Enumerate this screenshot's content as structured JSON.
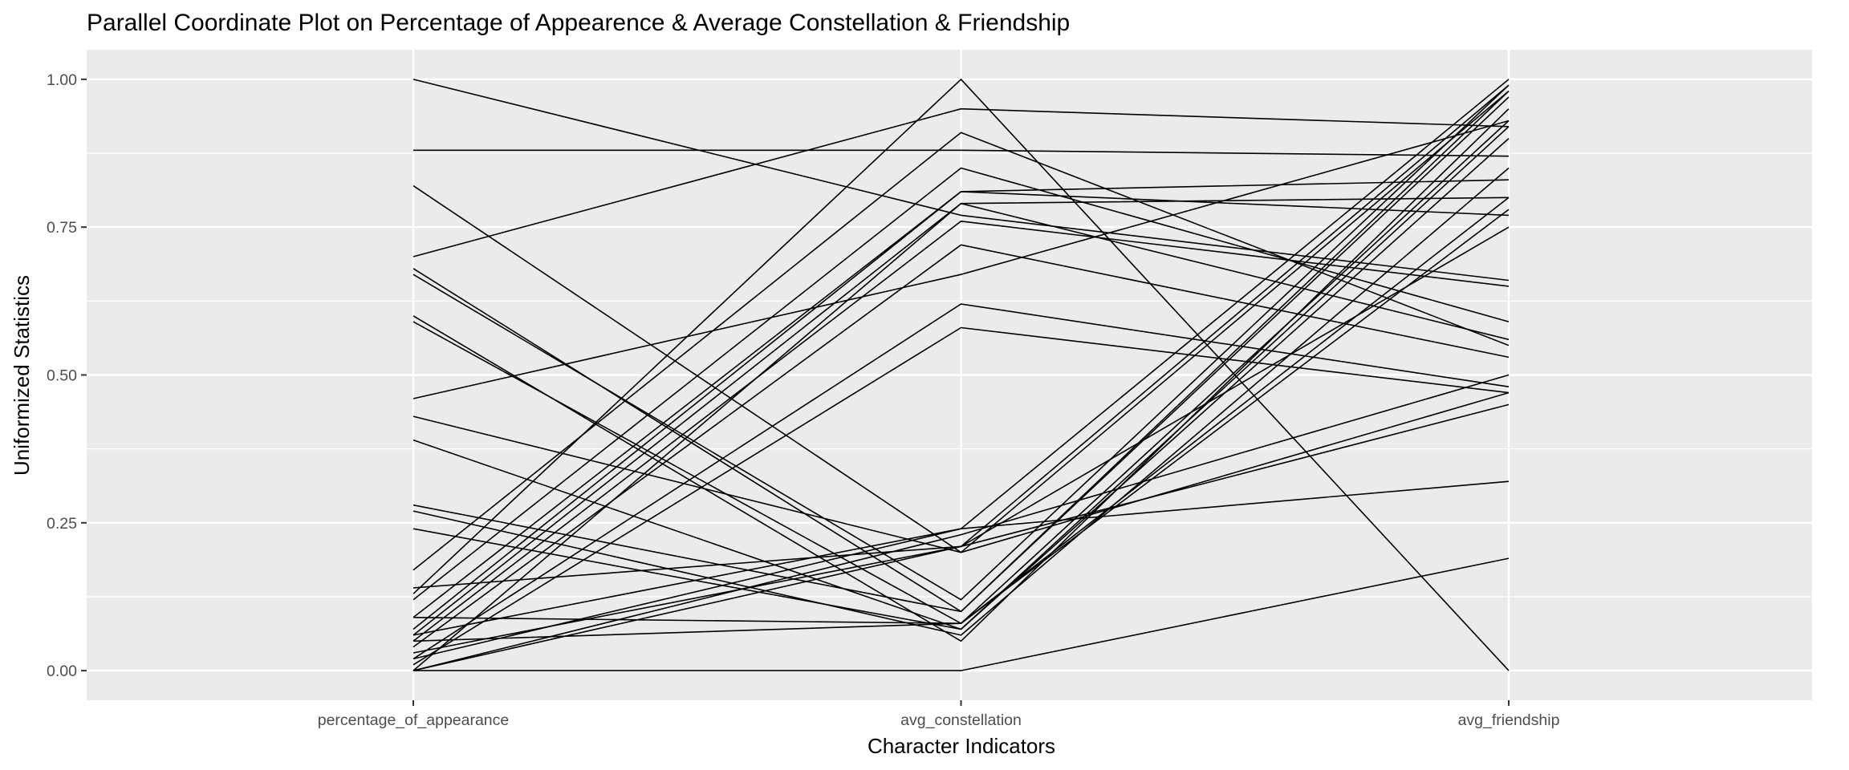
{
  "chart_data": {
    "type": "line",
    "subtype": "parallel-coordinates",
    "title": "Parallel Coordinate Plot on Percentage of Appearence & Average Constellation & Friendship",
    "xlabel": "Character Indicators",
    "ylabel": "Uniformized Statistics",
    "categories": [
      "percentage_of_appearance",
      "avg_constellation",
      "avg_friendship"
    ],
    "ylim": [
      -0.05,
      1.05
    ],
    "yticks": [
      0.0,
      0.25,
      0.5,
      0.75,
      1.0
    ],
    "ytick_labels": [
      "0.00",
      "0.25",
      "0.50",
      "0.75",
      "1.00"
    ],
    "grid": true,
    "legend": "none",
    "colors": {
      "panel_background": "#ebebeb",
      "grid_major": "#ffffff",
      "line": "#000000",
      "tick_label": "#4d4d4d",
      "tick_mark": "#333333"
    },
    "series": [
      {
        "values": [
          1.0,
          0.77,
          0.66
        ]
      },
      {
        "values": [
          0.88,
          0.88,
          0.87
        ]
      },
      {
        "values": [
          0.82,
          0.2,
          0.47
        ]
      },
      {
        "values": [
          0.7,
          0.95,
          0.92
        ]
      },
      {
        "values": [
          0.68,
          0.1,
          0.98
        ]
      },
      {
        "values": [
          0.67,
          0.12,
          0.99
        ]
      },
      {
        "values": [
          0.6,
          0.05,
          0.95
        ]
      },
      {
        "values": [
          0.59,
          0.08,
          0.93
        ]
      },
      {
        "values": [
          0.46,
          0.67,
          0.93
        ]
      },
      {
        "values": [
          0.43,
          0.2,
          0.98
        ]
      },
      {
        "values": [
          0.39,
          0.07,
          0.9
        ]
      },
      {
        "values": [
          0.28,
          0.1,
          0.97
        ]
      },
      {
        "values": [
          0.27,
          0.06,
          0.85
        ]
      },
      {
        "values": [
          0.24,
          0.07,
          0.92
        ]
      },
      {
        "values": [
          0.17,
          0.91,
          0.55
        ]
      },
      {
        "values": [
          0.14,
          0.21,
          0.99
        ]
      },
      {
        "values": [
          0.13,
          1.0,
          0.0
        ]
      },
      {
        "values": [
          0.12,
          0.85,
          0.59
        ]
      },
      {
        "values": [
          0.09,
          0.81,
          0.83
        ]
      },
      {
        "values": [
          0.09,
          0.08,
          0.8
        ]
      },
      {
        "values": [
          0.07,
          0.81,
          0.77
        ]
      },
      {
        "values": [
          0.06,
          0.79,
          0.56
        ]
      },
      {
        "values": [
          0.06,
          0.24,
          1.0
        ]
      },
      {
        "values": [
          0.05,
          0.76,
          0.65
        ]
      },
      {
        "values": [
          0.05,
          0.08,
          0.78
        ]
      },
      {
        "values": [
          0.04,
          0.72,
          0.53
        ]
      },
      {
        "values": [
          0.03,
          0.21,
          0.45
        ]
      },
      {
        "values": [
          0.02,
          0.62,
          0.48
        ]
      },
      {
        "values": [
          0.02,
          0.24,
          0.32
        ]
      },
      {
        "values": [
          0.01,
          0.58,
          0.47
        ]
      },
      {
        "values": [
          0.0,
          0.79,
          0.8
        ]
      },
      {
        "values": [
          0.0,
          0.23,
          0.5
        ]
      },
      {
        "values": [
          0.0,
          0.21,
          0.75
        ]
      },
      {
        "values": [
          0.0,
          0.0,
          0.19
        ]
      }
    ]
  }
}
